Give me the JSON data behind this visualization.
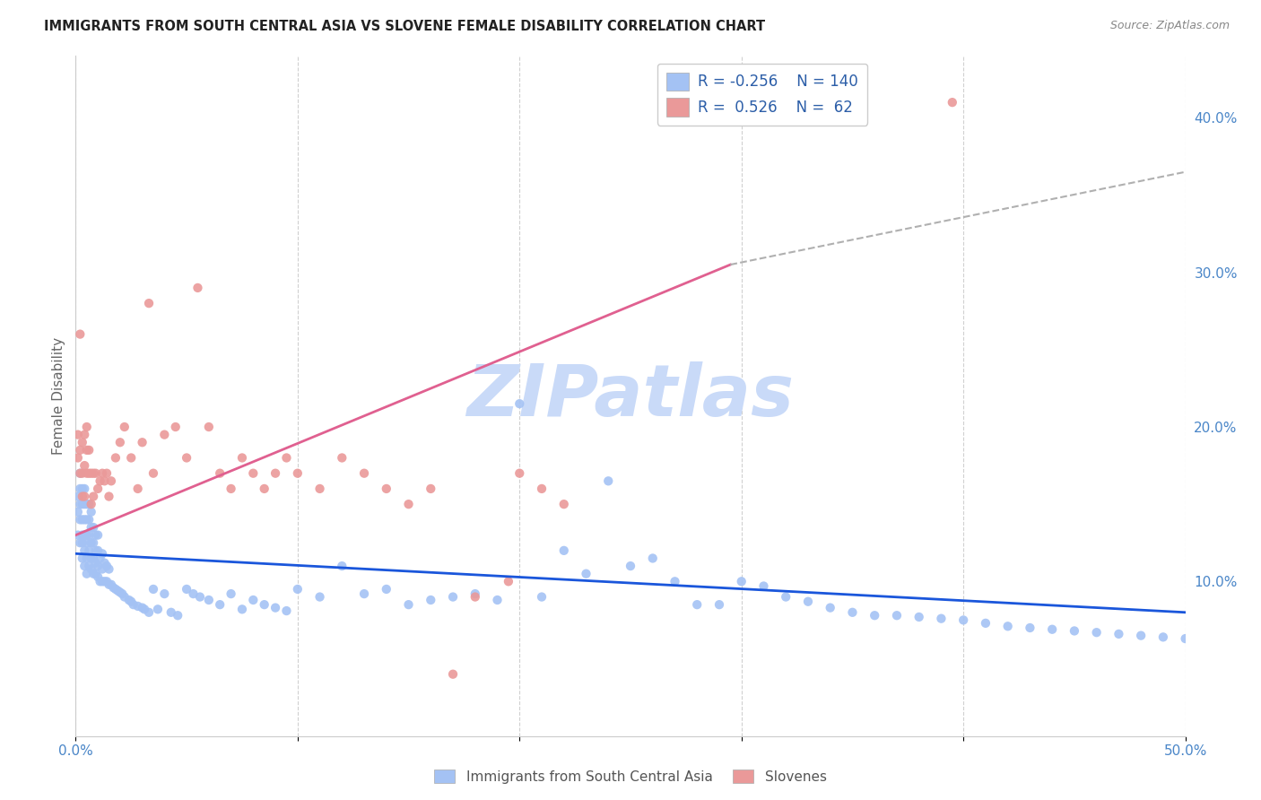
{
  "title": "IMMIGRANTS FROM SOUTH CENTRAL ASIA VS SLOVENE FEMALE DISABILITY CORRELATION CHART",
  "source": "Source: ZipAtlas.com",
  "ylabel": "Female Disability",
  "xlim": [
    0.0,
    0.5
  ],
  "ylim": [
    0.0,
    0.44
  ],
  "xticks": [
    0.0,
    0.1,
    0.2,
    0.3,
    0.4,
    0.5
  ],
  "xticklabels": [
    "0.0%",
    "",
    "",
    "",
    "",
    "50.0%"
  ],
  "yticks_right": [
    0.1,
    0.2,
    0.3,
    0.4
  ],
  "yticklabels_right": [
    "10.0%",
    "20.0%",
    "30.0%",
    "40.0%"
  ],
  "blue_color": "#a4c2f4",
  "pink_color": "#ea9999",
  "blue_line_color": "#1a56db",
  "pink_line_color": "#e06090",
  "dashed_line_color": "#b0b0b0",
  "grid_color": "#d0d0d0",
  "watermark_text": "ZIPatlas",
  "watermark_color": "#c9daf8",
  "legend_r_blue": "-0.256",
  "legend_n_blue": "140",
  "legend_r_pink": "0.526",
  "legend_n_pink": "62",
  "legend_label_blue": "Immigrants from South Central Asia",
  "legend_label_pink": "Slovenes",
  "blue_line_x": [
    0.0,
    0.5
  ],
  "blue_line_y": [
    0.118,
    0.08
  ],
  "pink_line_x": [
    0.0,
    0.295
  ],
  "pink_line_y": [
    0.13,
    0.305
  ],
  "dashed_line_x": [
    0.295,
    0.5
  ],
  "dashed_line_y": [
    0.305,
    0.365
  ],
  "blue_scatter_x": [
    0.001,
    0.001,
    0.001,
    0.002,
    0.002,
    0.002,
    0.002,
    0.002,
    0.003,
    0.003,
    0.003,
    0.003,
    0.003,
    0.003,
    0.004,
    0.004,
    0.004,
    0.004,
    0.004,
    0.004,
    0.005,
    0.005,
    0.005,
    0.005,
    0.005,
    0.005,
    0.006,
    0.006,
    0.006,
    0.006,
    0.006,
    0.007,
    0.007,
    0.007,
    0.007,
    0.007,
    0.008,
    0.008,
    0.008,
    0.008,
    0.009,
    0.009,
    0.009,
    0.009,
    0.01,
    0.01,
    0.01,
    0.01,
    0.011,
    0.011,
    0.012,
    0.012,
    0.012,
    0.013,
    0.013,
    0.014,
    0.014,
    0.015,
    0.015,
    0.016,
    0.017,
    0.018,
    0.019,
    0.02,
    0.021,
    0.022,
    0.024,
    0.025,
    0.026,
    0.028,
    0.03,
    0.031,
    0.033,
    0.035,
    0.037,
    0.04,
    0.043,
    0.046,
    0.05,
    0.053,
    0.056,
    0.06,
    0.065,
    0.07,
    0.075,
    0.08,
    0.085,
    0.09,
    0.095,
    0.1,
    0.11,
    0.12,
    0.13,
    0.14,
    0.15,
    0.16,
    0.17,
    0.18,
    0.19,
    0.2,
    0.21,
    0.22,
    0.23,
    0.24,
    0.25,
    0.26,
    0.27,
    0.28,
    0.29,
    0.3,
    0.31,
    0.32,
    0.33,
    0.34,
    0.35,
    0.36,
    0.37,
    0.38,
    0.39,
    0.4,
    0.41,
    0.42,
    0.43,
    0.44,
    0.45,
    0.46,
    0.47,
    0.48,
    0.49,
    0.5
  ],
  "blue_scatter_y": [
    0.145,
    0.13,
    0.155,
    0.125,
    0.14,
    0.15,
    0.16,
    0.17,
    0.115,
    0.125,
    0.13,
    0.14,
    0.15,
    0.16,
    0.11,
    0.12,
    0.13,
    0.14,
    0.15,
    0.16,
    0.105,
    0.115,
    0.125,
    0.13,
    0.14,
    0.15,
    0.11,
    0.12,
    0.13,
    0.14,
    0.15,
    0.108,
    0.115,
    0.125,
    0.135,
    0.145,
    0.105,
    0.115,
    0.125,
    0.135,
    0.105,
    0.112,
    0.12,
    0.13,
    0.103,
    0.11,
    0.12,
    0.13,
    0.1,
    0.115,
    0.1,
    0.108,
    0.118,
    0.1,
    0.112,
    0.1,
    0.11,
    0.098,
    0.108,
    0.098,
    0.096,
    0.095,
    0.094,
    0.093,
    0.092,
    0.09,
    0.088,
    0.087,
    0.085,
    0.084,
    0.083,
    0.082,
    0.08,
    0.095,
    0.082,
    0.092,
    0.08,
    0.078,
    0.095,
    0.092,
    0.09,
    0.088,
    0.085,
    0.092,
    0.082,
    0.088,
    0.085,
    0.083,
    0.081,
    0.095,
    0.09,
    0.11,
    0.092,
    0.095,
    0.085,
    0.088,
    0.09,
    0.092,
    0.088,
    0.215,
    0.09,
    0.12,
    0.105,
    0.165,
    0.11,
    0.115,
    0.1,
    0.085,
    0.085,
    0.1,
    0.097,
    0.09,
    0.087,
    0.083,
    0.08,
    0.078,
    0.078,
    0.077,
    0.076,
    0.075,
    0.073,
    0.071,
    0.07,
    0.069,
    0.068,
    0.067,
    0.066,
    0.065,
    0.064,
    0.063
  ],
  "pink_scatter_x": [
    0.001,
    0.001,
    0.002,
    0.002,
    0.002,
    0.003,
    0.003,
    0.003,
    0.004,
    0.004,
    0.004,
    0.005,
    0.005,
    0.005,
    0.006,
    0.006,
    0.007,
    0.007,
    0.008,
    0.008,
    0.009,
    0.01,
    0.011,
    0.012,
    0.013,
    0.014,
    0.015,
    0.016,
    0.018,
    0.02,
    0.022,
    0.025,
    0.028,
    0.03,
    0.033,
    0.035,
    0.04,
    0.045,
    0.05,
    0.055,
    0.06,
    0.065,
    0.07,
    0.075,
    0.08,
    0.085,
    0.09,
    0.095,
    0.1,
    0.11,
    0.12,
    0.13,
    0.14,
    0.15,
    0.16,
    0.17,
    0.18,
    0.195,
    0.2,
    0.21,
    0.22,
    0.395
  ],
  "pink_scatter_y": [
    0.18,
    0.195,
    0.17,
    0.185,
    0.26,
    0.155,
    0.17,
    0.19,
    0.155,
    0.175,
    0.195,
    0.17,
    0.185,
    0.2,
    0.17,
    0.185,
    0.15,
    0.17,
    0.155,
    0.17,
    0.17,
    0.16,
    0.165,
    0.17,
    0.165,
    0.17,
    0.155,
    0.165,
    0.18,
    0.19,
    0.2,
    0.18,
    0.16,
    0.19,
    0.28,
    0.17,
    0.195,
    0.2,
    0.18,
    0.29,
    0.2,
    0.17,
    0.16,
    0.18,
    0.17,
    0.16,
    0.17,
    0.18,
    0.17,
    0.16,
    0.18,
    0.17,
    0.16,
    0.15,
    0.16,
    0.04,
    0.09,
    0.1,
    0.17,
    0.16,
    0.15,
    0.41
  ]
}
